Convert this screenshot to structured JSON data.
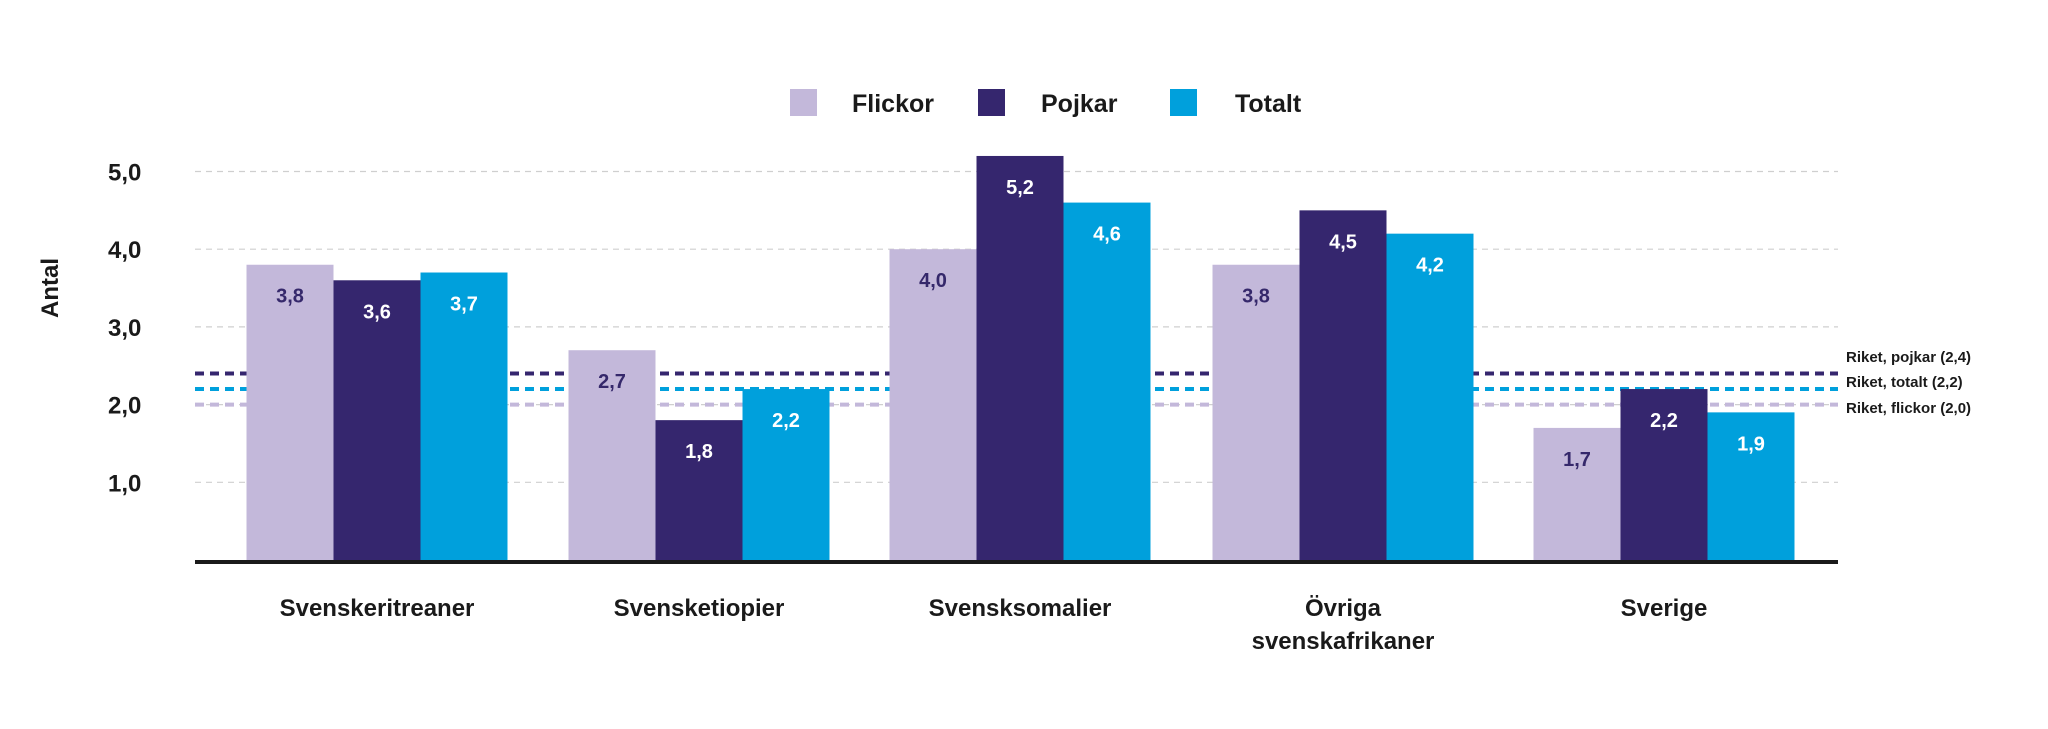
{
  "chart_data": {
    "type": "bar",
    "ylabel": "Antal",
    "xlabel": "",
    "ylim": [
      0,
      5.5
    ],
    "yticks": [
      1.0,
      2.0,
      3.0,
      4.0,
      5.0
    ],
    "ytick_labels": [
      "1,0",
      "2,0",
      "3,0",
      "4,0",
      "5,0"
    ],
    "grid": true,
    "legend_position": "top-center",
    "categories": [
      [
        "Svenskeritreaner"
      ],
      [
        "Svensketiopier"
      ],
      [
        "Svensksomalier"
      ],
      [
        "Övriga",
        "svenskafrikaner"
      ],
      [
        "Sverige"
      ]
    ],
    "series": [
      {
        "name": "Flickor",
        "color": "#c3b8da",
        "label_color": "#35286b",
        "values": [
          3.8,
          2.7,
          4.0,
          3.8,
          1.7
        ],
        "value_labels": [
          "3,8",
          "2,7",
          "4,0",
          "3,8",
          "1,7"
        ]
      },
      {
        "name": "Pojkar",
        "color": "#35266e",
        "label_color": "#ffffff",
        "values": [
          3.6,
          1.8,
          5.2,
          4.5,
          2.2
        ],
        "value_labels": [
          "3,6",
          "1,8",
          "5,2",
          "4,5",
          "2,2"
        ]
      },
      {
        "name": "Totalt",
        "color": "#00a0dc",
        "label_color": "#ffffff",
        "values": [
          3.7,
          2.2,
          4.6,
          4.2,
          1.9
        ],
        "value_labels": [
          "3,7",
          "2,2",
          "4,6",
          "4,2",
          "1,9"
        ]
      }
    ],
    "reference_lines": [
      {
        "label": "Riket, pojkar (2,4)",
        "value": 2.4,
        "color": "#35266e"
      },
      {
        "label": "Riket, totalt (2,2)",
        "value": 2.2,
        "color": "#00a0dc"
      },
      {
        "label": "Riket, flickor (2,0)",
        "value": 2.0,
        "color": "#c3b8da"
      }
    ]
  }
}
